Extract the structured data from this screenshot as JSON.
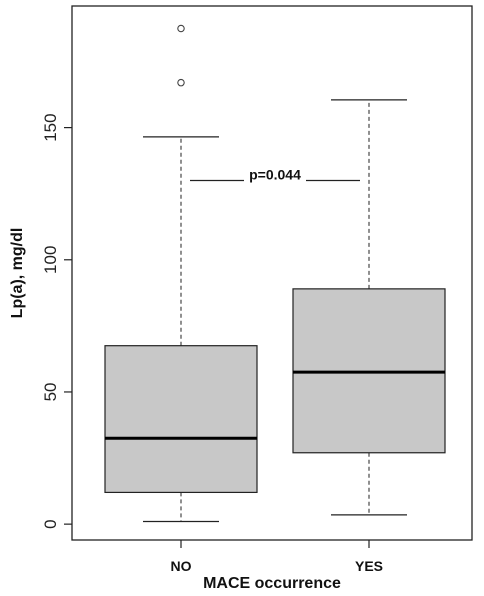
{
  "chart_data": {
    "type": "boxplot",
    "xlabel": "MACE occurrence",
    "ylabel": "Lp(a), mg/dl",
    "categories": [
      "NO",
      "YES"
    ],
    "ylim": [
      -6,
      196
    ],
    "yticks": [
      0,
      50,
      100,
      150
    ],
    "boxes": [
      {
        "category": "NO",
        "whisker_low": 1,
        "q1": 12,
        "median": 32.5,
        "q3": 67.5,
        "whisker_high": 146.5,
        "outliers": [
          167,
          187.5
        ]
      },
      {
        "category": "YES",
        "whisker_low": 3.5,
        "q1": 27,
        "median": 57.5,
        "q3": 89,
        "whisker_high": 160.5,
        "outliers": []
      }
    ],
    "annotation": {
      "text": "p=0.044",
      "y": 130
    },
    "box_color": "#c8c8c8",
    "grid": false
  }
}
